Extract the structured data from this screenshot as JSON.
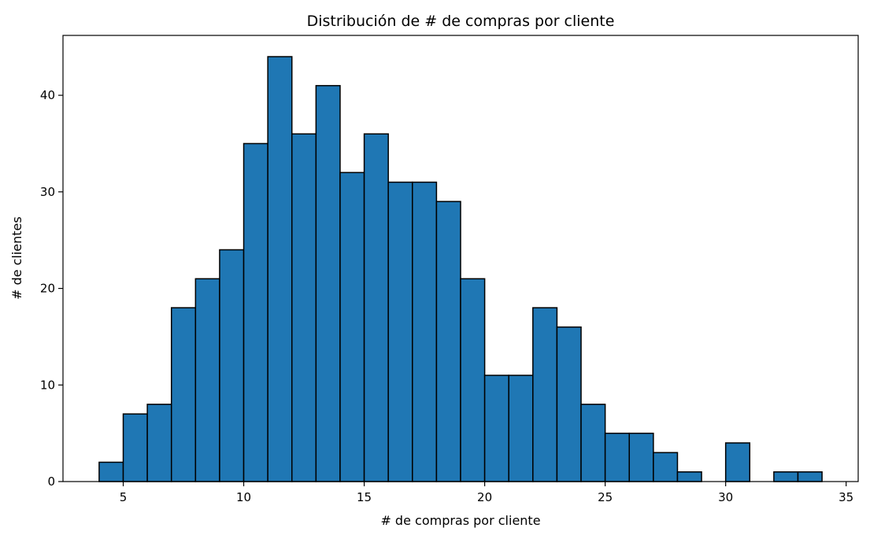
{
  "chart_data": {
    "type": "bar",
    "title": "Distribución de # de compras por cliente",
    "xlabel": "# de compras por cliente",
    "ylabel": "# de clientes",
    "bar_color": "#1f77b4",
    "edge_color": "#000000",
    "xlim": [
      2.5,
      35.5
    ],
    "ylim": [
      0,
      46.2
    ],
    "xticks": [
      5,
      10,
      15,
      20,
      25,
      30,
      35
    ],
    "xtick_labels": [
      "5",
      "10",
      "15",
      "20",
      "25",
      "30",
      "35"
    ],
    "yticks": [
      0,
      10,
      20,
      30,
      40
    ],
    "ytick_labels": [
      "0",
      "10",
      "20",
      "30",
      "40"
    ],
    "bin_edges": [
      4,
      5,
      6,
      7,
      8,
      9,
      10,
      11,
      12,
      13,
      14,
      15,
      16,
      17,
      18,
      19,
      20,
      21,
      22,
      23,
      24,
      25,
      26,
      27,
      28,
      29,
      30,
      31,
      32,
      33,
      34
    ],
    "values": [
      2,
      7,
      8,
      18,
      21,
      24,
      35,
      44,
      36,
      41,
      32,
      36,
      31,
      31,
      29,
      21,
      11,
      11,
      18,
      16,
      8,
      5,
      5,
      3,
      1,
      0,
      4,
      0,
      1,
      1
    ],
    "grid": false,
    "legend": "none"
  }
}
